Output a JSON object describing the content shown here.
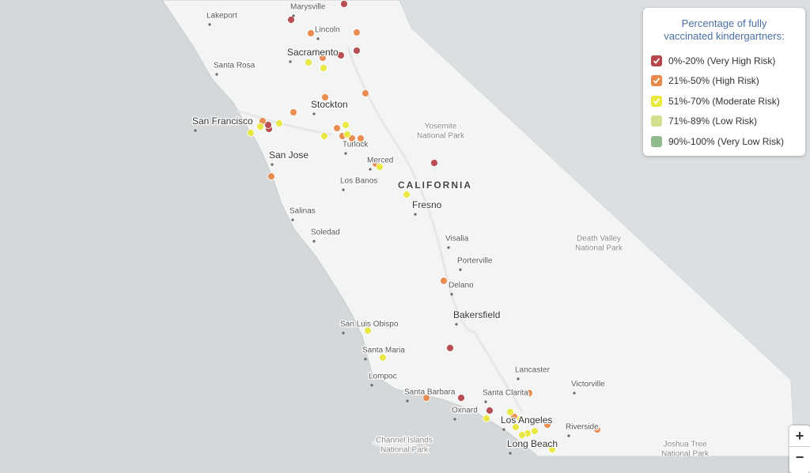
{
  "legend": {
    "title": "Percentage of fully vaccinated kindergartners:",
    "items": [
      {
        "label": "0%-20% (Very High Risk)",
        "color": "#b5474b"
      },
      {
        "label": "21%-50% (High Risk)",
        "color": "#e8894a"
      },
      {
        "label": "51%-70% (Moderate Risk)",
        "color": "#e9e83c"
      },
      {
        "label": "71%-89% (Low Risk)",
        "color": "#d4df8f"
      },
      {
        "label": "90%-100% (Very Low Risk)",
        "color": "#8fbc8f"
      }
    ]
  },
  "places": [
    {
      "lines": [
        "Marysville"
      ]
    },
    {
      "lines": [
        "Lakeport"
      ]
    },
    {
      "lines": [
        "Lincoln"
      ]
    },
    {
      "lines": [
        "Sacramento"
      ]
    },
    {
      "lines": [
        "Santa Rosa"
      ]
    },
    {
      "lines": [
        "Stockton"
      ]
    },
    {
      "lines": [
        "San Francisco"
      ]
    },
    {
      "lines": [
        "Yosemite",
        "National Park"
      ]
    },
    {
      "lines": [
        "Turlock"
      ]
    },
    {
      "lines": [
        "Merced"
      ]
    },
    {
      "lines": [
        "San Jose"
      ]
    },
    {
      "lines": [
        "Los Banos"
      ]
    },
    {
      "lines": [
        "CALIFORNIA"
      ]
    },
    {
      "lines": [
        "Fresno"
      ]
    },
    {
      "lines": [
        "Salinas"
      ]
    },
    {
      "lines": [
        "Soledad"
      ]
    },
    {
      "lines": [
        "Visalia"
      ]
    },
    {
      "lines": [
        "Porterville"
      ]
    },
    {
      "lines": [
        "Delano"
      ]
    },
    {
      "lines": [
        "Death Valley",
        "National Park"
      ]
    },
    {
      "lines": [
        "Bakersfield"
      ]
    },
    {
      "lines": [
        "San Luis Obispo"
      ]
    },
    {
      "lines": [
        "Santa Maria"
      ]
    },
    {
      "lines": [
        "Lompoc"
      ]
    },
    {
      "lines": [
        "Lancaster"
      ]
    },
    {
      "lines": [
        "Victorville"
      ]
    },
    {
      "lines": [
        "Santa Barbara"
      ]
    },
    {
      "lines": [
        "Santa Clarita"
      ]
    },
    {
      "lines": [
        "Oxnard"
      ]
    },
    {
      "lines": [
        "Los Angeles"
      ]
    },
    {
      "lines": [
        "Riverside"
      ]
    },
    {
      "lines": [
        "Channel Islands",
        "National Park"
      ]
    },
    {
      "lines": [
        "Long Beach"
      ]
    },
    {
      "lines": [
        "Joshua Tree",
        "National Park"
      ]
    }
  ],
  "zoom": {
    "in": "+",
    "out": "−"
  }
}
